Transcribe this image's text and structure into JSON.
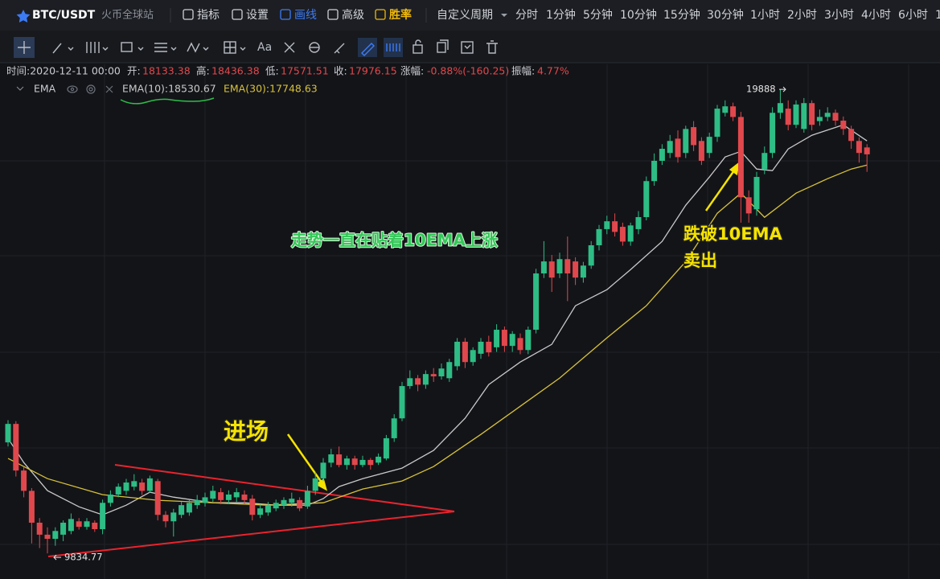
{
  "toolbar": {
    "symbol": "BTC/USDT",
    "exchange": "火币全球站",
    "menu": [
      "指标",
      "设置",
      "画线",
      "高级",
      "胜率"
    ],
    "period_label": "自定义周期",
    "periods": [
      "分时",
      "1分钟",
      "5分钟",
      "10分钟",
      "15分钟",
      "30分钟",
      "1小时",
      "2小时",
      "3小时",
      "4小时",
      "6小时",
      "1"
    ]
  },
  "drawing_tools": {
    "text_tool": "Aa"
  },
  "ohlc_bar": {
    "time": "时间:2020-12-11 00:00",
    "fields": [
      {
        "label": "开:",
        "value": 18133.38
      },
      {
        "label": "高:",
        "value": 18436.38
      },
      {
        "label": "低:",
        "value": 17571.51
      },
      {
        "label": "收:",
        "value": 17976.15
      },
      {
        "label": "涨幅:",
        "value": "-0.88%(-160.25)"
      },
      {
        "label": "振幅:",
        "value": "4.77%"
      }
    ]
  },
  "indicator": {
    "name": "EMA",
    "ema10_label": "EMA(10):18530.67",
    "ema30_label": "EMA(30):17748.63"
  },
  "chart_data": {
    "type": "candlestick",
    "up_color": "#2ebd85",
    "down_color": "#e0484d",
    "ylim": [
      9280,
      20430
    ],
    "candles": [
      [
        12240,
        12720,
        12150,
        12640
      ],
      [
        12640,
        12700,
        11500,
        11630
      ],
      [
        11630,
        11700,
        11050,
        11190
      ],
      [
        11190,
        11250,
        10050,
        10500
      ],
      [
        10500,
        10600,
        9950,
        10240
      ],
      [
        10240,
        10400,
        9834.77,
        10150
      ],
      [
        10150,
        10400,
        10000,
        10320
      ],
      [
        10240,
        10550,
        10100,
        10500
      ],
      [
        10320,
        10700,
        10250,
        10580
      ],
      [
        10530,
        10600,
        10350,
        10410
      ],
      [
        10410,
        10600,
        10350,
        10530
      ],
      [
        10500,
        10550,
        10300,
        10360
      ],
      [
        10360,
        11000,
        10250,
        10930
      ],
      [
        10930,
        11200,
        10850,
        11110
      ],
      [
        11110,
        11350,
        11050,
        11280
      ],
      [
        11190,
        11450,
        11100,
        11370
      ],
      [
        11280,
        11550,
        11200,
        11400
      ],
      [
        11370,
        11450,
        11100,
        11190
      ],
      [
        11190,
        11520,
        11150,
        11460
      ],
      [
        11400,
        11450,
        10550,
        10670
      ],
      [
        10670,
        10750,
        10400,
        10530
      ],
      [
        10530,
        10800,
        10200,
        10720
      ],
      [
        10670,
        10950,
        10600,
        10880
      ],
      [
        10720,
        11000,
        10650,
        10930
      ],
      [
        10880,
        11100,
        10800,
        10990
      ],
      [
        10930,
        11150,
        10850,
        11050
      ],
      [
        11020,
        11300,
        10950,
        11190
      ],
      [
        11160,
        11250,
        10900,
        10990
      ],
      [
        10990,
        11200,
        10900,
        11110
      ],
      [
        11050,
        11250,
        10950,
        11160
      ],
      [
        11110,
        11200,
        10900,
        10990
      ],
      [
        11020,
        11100,
        10550,
        10670
      ],
      [
        10670,
        10900,
        10600,
        10810
      ],
      [
        10720,
        10950,
        10650,
        10880
      ],
      [
        10810,
        11000,
        10750,
        10930
      ],
      [
        10880,
        11050,
        10800,
        10990
      ],
      [
        10930,
        11150,
        10850,
        11020
      ],
      [
        10990,
        11050,
        10750,
        10810
      ],
      [
        10850,
        11300,
        10800,
        11190
      ],
      [
        11190,
        11600,
        11100,
        11460
      ],
      [
        11460,
        11900,
        11400,
        11800
      ],
      [
        11800,
        12100,
        11700,
        11980
      ],
      [
        11980,
        12150,
        11700,
        11750
      ],
      [
        11750,
        11950,
        11650,
        11890
      ],
      [
        11890,
        11950,
        11650,
        11750
      ],
      [
        11750,
        11950,
        11700,
        11860
      ],
      [
        11860,
        11900,
        11650,
        11750
      ],
      [
        11800,
        12000,
        11750,
        11930
      ],
      [
        11890,
        12400,
        11850,
        12330
      ],
      [
        12330,
        12850,
        12250,
        12760
      ],
      [
        12760,
        13550,
        12700,
        13460
      ],
      [
        13460,
        13800,
        13400,
        13630
      ],
      [
        13630,
        13700,
        13350,
        13490
      ],
      [
        13490,
        13800,
        13400,
        13720
      ],
      [
        13720,
        13850,
        13550,
        13670
      ],
      [
        13670,
        13950,
        13600,
        13840
      ],
      [
        13630,
        14050,
        13550,
        13980
      ],
      [
        13890,
        14500,
        13800,
        14420
      ],
      [
        14420,
        14500,
        13850,
        13980
      ],
      [
        13980,
        14300,
        13900,
        14240
      ],
      [
        14160,
        14500,
        14050,
        14420
      ],
      [
        14420,
        14550,
        14100,
        14190
      ],
      [
        14300,
        14800,
        14200,
        14680
      ],
      [
        14680,
        14750,
        14200,
        14330
      ],
      [
        14330,
        14650,
        14200,
        14590
      ],
      [
        14500,
        14600,
        14150,
        14240
      ],
      [
        14240,
        14750,
        14150,
        14680
      ],
      [
        14680,
        16000,
        14600,
        15900
      ],
      [
        15900,
        16600,
        15800,
        16160
      ],
      [
        16160,
        16300,
        15500,
        15810
      ],
      [
        15900,
        16350,
        15800,
        16210
      ],
      [
        16210,
        16700,
        15300,
        15900
      ],
      [
        16160,
        16250,
        15650,
        15810
      ],
      [
        15810,
        16150,
        15700,
        16070
      ],
      [
        16070,
        16600,
        16000,
        16510
      ],
      [
        16510,
        16950,
        16400,
        16860
      ],
      [
        16860,
        17150,
        16750,
        17030
      ],
      [
        17030,
        17200,
        16700,
        16800
      ],
      [
        16910,
        17000,
        16500,
        16590
      ],
      [
        16590,
        17000,
        16500,
        16940
      ],
      [
        16860,
        17250,
        16750,
        17120
      ],
      [
        17120,
        18000,
        17050,
        17900
      ],
      [
        17900,
        18500,
        17800,
        18340
      ],
      [
        18340,
        18700,
        18250,
        18600
      ],
      [
        18510,
        18900,
        18400,
        18770
      ],
      [
        18820,
        19000,
        18300,
        18420
      ],
      [
        18510,
        19100,
        18400,
        19030
      ],
      [
        19070,
        19200,
        18550,
        18680
      ],
      [
        18770,
        18850,
        18250,
        18340
      ],
      [
        18510,
        18950,
        18400,
        18860
      ],
      [
        18860,
        19550,
        18750,
        19470
      ],
      [
        19380,
        19650,
        19300,
        19520
      ],
      [
        19520,
        19600,
        19200,
        19290
      ],
      [
        19290,
        19400,
        17000,
        17550
      ],
      [
        17550,
        17700,
        17000,
        17200
      ],
      [
        17290,
        18100,
        17150,
        17990
      ],
      [
        18160,
        18650,
        18050,
        18510
      ],
      [
        18510,
        19500,
        18400,
        19380
      ],
      [
        19380,
        19888,
        19250,
        19590
      ],
      [
        19470,
        19650,
        19000,
        19120
      ],
      [
        19120,
        19650,
        19050,
        19560
      ],
      [
        19030,
        19700,
        18950,
        19590
      ],
      [
        19590,
        19650,
        19000,
        19120
      ],
      [
        19200,
        19450,
        19100,
        19290
      ],
      [
        19290,
        19500,
        19200,
        19380
      ],
      [
        19380,
        19450,
        19100,
        19210
      ],
      [
        19210,
        19300,
        18900,
        19030
      ],
      [
        19030,
        19100,
        18600,
        18770
      ],
      [
        18770,
        18850,
        18300,
        18510
      ],
      [
        18630,
        18700,
        18100,
        18480
      ]
    ],
    "series": [
      {
        "color": "#c9c9c9",
        "x": [
          0,
          2,
          5,
          9,
          12,
          15,
          18,
          21,
          26,
          30,
          34,
          38,
          40,
          42,
          45,
          50,
          54,
          58,
          61,
          65,
          69,
          72,
          76,
          79,
          83,
          86,
          89,
          91,
          93,
          95,
          97,
          99,
          102,
          106,
          109
        ],
        "values": [
          12326,
          11803,
          11194,
          10845,
          10671,
          10880,
          11159,
          11054,
          10932,
          10932,
          10880,
          10880,
          11020,
          11281,
          11455,
          11682,
          12065,
          12762,
          13493,
          13981,
          14364,
          15200,
          15549,
          15984,
          16594,
          17378,
          17988,
          18423,
          18545,
          18162,
          18127,
          18597,
          18893,
          19120,
          18771
        ]
      },
      {
        "color": "#d8c23a",
        "x": [
          0,
          5,
          12,
          19,
          26,
          33,
          40,
          45,
          50,
          54,
          60,
          65,
          70,
          76,
          81,
          86,
          90,
          93,
          96,
          100,
          104,
          107,
          109
        ],
        "values": [
          11891,
          11455,
          11107,
          10985,
          10932,
          10880,
          10932,
          11229,
          11403,
          11716,
          12413,
          13023,
          13633,
          14504,
          15200,
          16158,
          17204,
          17639,
          17117,
          17639,
          17953,
          18162,
          18249
        ]
      }
    ],
    "annotations": [
      "走势一直在贴着10EMA上涨",
      "进场",
      "跌破10EMA",
      "卖出"
    ]
  }
}
